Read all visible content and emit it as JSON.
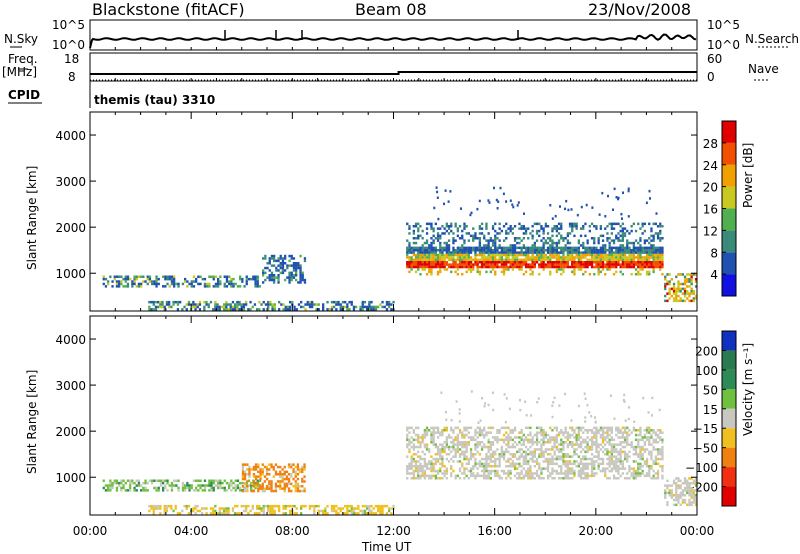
{
  "header": {
    "title_left": "Blackstone (fitACF)",
    "title_center": "Beam 08",
    "title_right": "23/Nov/2008"
  },
  "status_panels": {
    "nsky_label": "N.Sky",
    "nsky_ticks": [
      "10^5",
      "10^0"
    ],
    "nsearch_label": "N.Search",
    "nsearch_ticks": [
      "10^5",
      "10^0"
    ],
    "freq_label_1": "Freq.",
    "freq_label_2": "[MHz]",
    "freq_ticks": [
      "18",
      "8"
    ],
    "nave_label": "Nave",
    "nave_ticks": [
      "60",
      "0"
    ],
    "cpid_label": "CPID",
    "cpid_text": "themis (tau) 3310"
  },
  "chart_data": [
    {
      "type": "heatmap",
      "parameter": "Power",
      "xlabel": "",
      "ylabel": "Slant Range [km]",
      "xlim": [
        0,
        24
      ],
      "ylim": [
        180,
        4500
      ],
      "yticks": [
        1000,
        2000,
        3000,
        4000
      ],
      "colorbar": {
        "label": "Power [dB]",
        "ticks": [
          "4",
          "8",
          "12",
          "16",
          "20",
          "24",
          "28"
        ],
        "range": [
          0,
          32
        ],
        "colors": [
          "#1010e0",
          "#2050b0",
          "#3a8a7a",
          "#50b050",
          "#c8c820",
          "#f0a000",
          "#f05000",
          "#e00000"
        ]
      },
      "echo_regions": [
        {
          "t_start": 0.5,
          "t_end": 6.8,
          "r_min": 700,
          "r_max": 950,
          "level": "weak-moderate"
        },
        {
          "t_start": 6.8,
          "t_end": 8.5,
          "r_min": 800,
          "r_max": 1400,
          "level": "weak"
        },
        {
          "t_start": 2.3,
          "t_end": 12.0,
          "r_min": 200,
          "r_max": 400,
          "level": "weak-moderate"
        },
        {
          "t_start": 12.5,
          "t_end": 22.7,
          "r_min": 950,
          "r_max": 2100,
          "level": "strong"
        },
        {
          "t_start": 22.7,
          "t_end": 24.0,
          "r_min": 400,
          "r_max": 1000,
          "level": "moderate-strong"
        }
      ]
    },
    {
      "type": "heatmap",
      "parameter": "Velocity",
      "xlabel": "Time UT",
      "ylabel": "Slant Range [km]",
      "xlim": [
        0,
        24
      ],
      "ylim": [
        180,
        4500
      ],
      "yticks": [
        1000,
        2000,
        3000,
        4000
      ],
      "xticks": [
        "00:00",
        "04:00",
        "08:00",
        "12:00",
        "16:00",
        "20:00",
        "00:00"
      ],
      "colorbar": {
        "label": "Velocity [m s⁻¹]",
        "ticks": [
          "200",
          "100",
          "50",
          "15",
          "−15",
          "−50",
          "−100",
          "−200"
        ],
        "colors": [
          "#1030c0",
          "#2a7a50",
          "#2e8b57",
          "#70c040",
          "#c8c8c0",
          "#f0c020",
          "#f08010",
          "#f03010",
          "#e00000"
        ]
      },
      "echo_regions": [
        {
          "t_start": 0.5,
          "t_end": 6.8,
          "r_min": 700,
          "r_max": 950,
          "class": "positive-low"
        },
        {
          "t_start": 6.0,
          "t_end": 8.5,
          "r_min": 700,
          "r_max": 1300,
          "class": "negative-moderate"
        },
        {
          "t_start": 2.3,
          "t_end": 12.0,
          "r_min": 200,
          "r_max": 400,
          "class": "negative-low"
        },
        {
          "t_start": 12.5,
          "t_end": 22.7,
          "r_min": 950,
          "r_max": 2100,
          "class": "ground-scatter"
        },
        {
          "t_start": 22.7,
          "t_end": 24.0,
          "r_min": 400,
          "r_max": 1000,
          "class": "ground-scatter"
        }
      ]
    }
  ]
}
